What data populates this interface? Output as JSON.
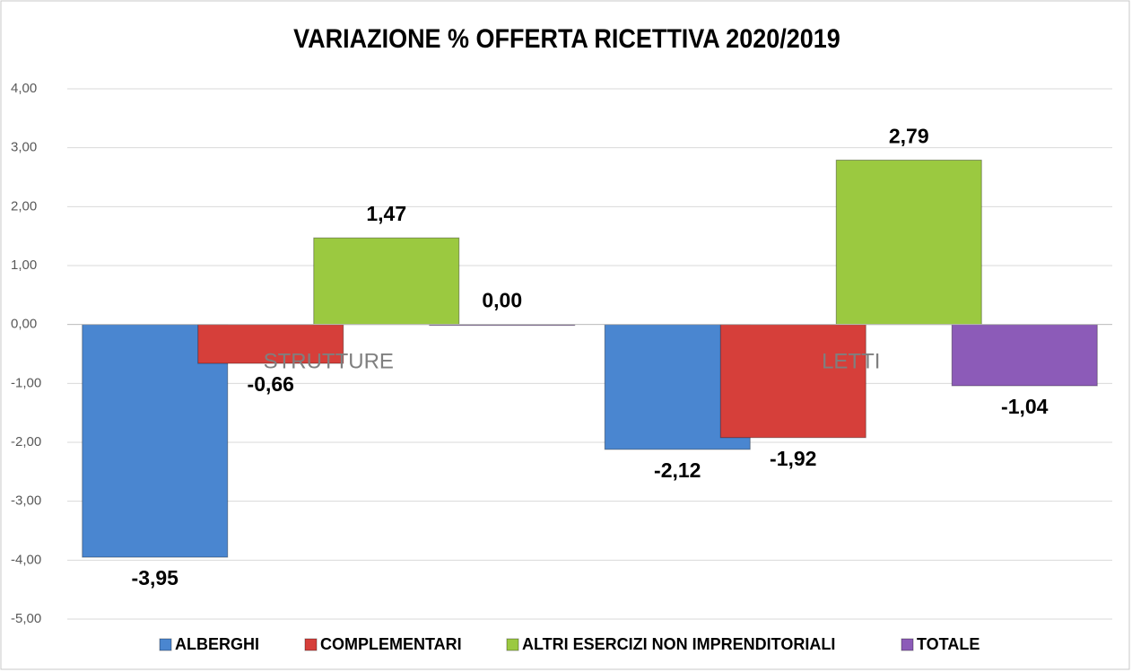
{
  "chart_data": {
    "type": "bar",
    "title": "VARIAZIONE % OFFERTA RICETTIVA 2020/2019",
    "categories": [
      "STRUTTURE",
      "LETTI"
    ],
    "series": [
      {
        "name": "ALBERGHI",
        "color": "#4a86d0",
        "values": [
          -3.95,
          -2.12
        ],
        "value_labels": [
          "-3,95",
          "-2,12"
        ]
      },
      {
        "name": "COMPLEMENTARI",
        "color": "#d63f3a",
        "values": [
          -0.66,
          -1.92
        ],
        "value_labels": [
          "-0,66",
          "-1,92"
        ]
      },
      {
        "name": "ALTRI ESERCIZI NON IMPRENDITORIALI",
        "color": "#9bc940",
        "values": [
          1.47,
          2.79
        ],
        "value_labels": [
          "1,47",
          "2,79"
        ]
      },
      {
        "name": "TOTALE",
        "color": "#8c5bb8",
        "values": [
          0.0,
          -1.04
        ],
        "value_labels": [
          "0,00",
          "-1,04"
        ]
      }
    ],
    "ylim": [
      -5,
      4
    ],
    "yticks": [
      {
        "value": -5,
        "label": "-5,00"
      },
      {
        "value": -4,
        "label": "-4,00"
      },
      {
        "value": -3,
        "label": "-3,00"
      },
      {
        "value": -2,
        "label": "-2,00"
      },
      {
        "value": -1,
        "label": "-1,00"
      },
      {
        "value": 0,
        "label": "0,00"
      },
      {
        "value": 1,
        "label": "1,00"
      },
      {
        "value": 2,
        "label": "2,00"
      },
      {
        "value": 3,
        "label": "3,00"
      },
      {
        "value": 4,
        "label": "4,00"
      }
    ],
    "grid": true,
    "legend": "bottom"
  }
}
